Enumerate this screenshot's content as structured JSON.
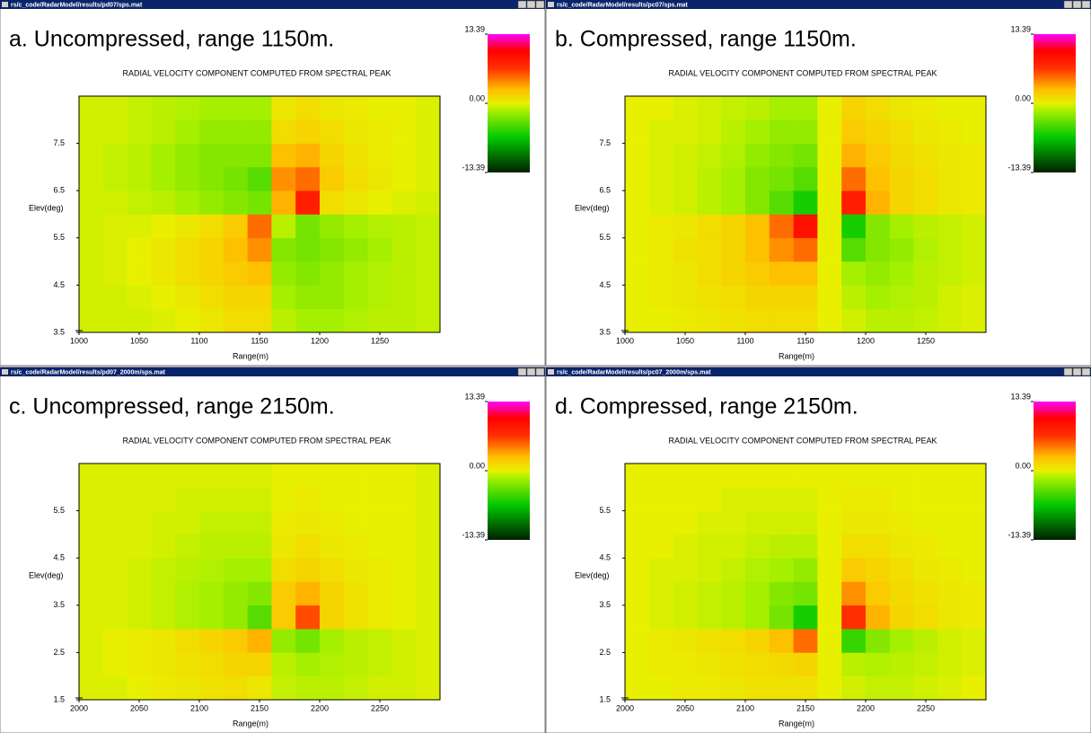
{
  "window_titles": [
    "rs/c_code/RadarModel/results/pd07/sps.mat",
    "rs/c_code/RadarModel/results/pc07/sps.mat",
    "rs/c_code/RadarModel/results/pd07_2000m/sps.mat",
    "rs/c_code/RadarModel/results/pc07_2000m/sps.mat"
  ],
  "chart_data": [
    {
      "type": "heatmap",
      "title": "a. Uncompressed, range 1150m.",
      "subtitle": "RADIAL VELOCITY COMPONENT COMPUTED FROM SPECTRAL PEAK",
      "x_label": "Range(m)",
      "y_label": "Elev(deg)",
      "xlim": [
        1000,
        1300
      ],
      "xticks": [
        1000,
        1050,
        1100,
        1150,
        1200,
        1250
      ],
      "ylim": [
        3.5,
        8.5
      ],
      "yticks": [
        3.5,
        4.5,
        5.5,
        6.5,
        7.5
      ],
      "zlim": [
        -13.39,
        13.39
      ],
      "zticks": [
        13.39,
        {
          "value": 0,
          "label": "0.00"
        },
        -13.39
      ],
      "x_bins": [
        1000,
        1020,
        1040,
        1060,
        1080,
        1100,
        1120,
        1140,
        1160,
        1180,
        1200,
        1220,
        1240,
        1260,
        1280,
        1300
      ],
      "y_bins": [
        3.5,
        4,
        4.5,
        5,
        5.5,
        6,
        6.5,
        7,
        7.5,
        8,
        8.5
      ],
      "z": [
        [
          -0.5,
          -0.5,
          -0.5,
          -0.3,
          0,
          0.5,
          1,
          1,
          -1,
          -1.5,
          -1.5,
          -1.2,
          -1,
          -1,
          -0.8
        ],
        [
          -0.5,
          -0.5,
          -0.3,
          0,
          0.5,
          1,
          1.5,
          1.5,
          -1.5,
          -2,
          -2,
          -1.5,
          -1.2,
          -1,
          -0.8
        ],
        [
          -0.5,
          -0.3,
          0,
          0.5,
          1,
          1.5,
          2,
          2.5,
          -2,
          -2.5,
          -2,
          -1.5,
          -1.2,
          -1,
          -0.8
        ],
        [
          -0.5,
          -0.3,
          0,
          0.5,
          1,
          1.5,
          2.5,
          4,
          -2.5,
          -3,
          -2.5,
          -2,
          -1.5,
          -1,
          -0.8
        ],
        [
          -0.5,
          -0.3,
          -0.3,
          0,
          0.5,
          1,
          2,
          5,
          -1,
          -3,
          -2,
          -1.5,
          -1.2,
          -1,
          -0.8
        ],
        [
          -0.5,
          -0.5,
          -0.8,
          -1,
          -1.5,
          -2,
          -2.5,
          -3,
          3,
          8,
          1,
          0.5,
          0,
          -0.3,
          -0.5
        ],
        [
          -0.5,
          -0.8,
          -1,
          -1.5,
          -2,
          -2.5,
          -3,
          -4,
          4,
          5,
          2,
          1,
          0.5,
          0,
          -0.3
        ],
        [
          -0.5,
          -0.8,
          -1,
          -1.5,
          -2,
          -2.5,
          -2.5,
          -2.5,
          2.5,
          3,
          1.5,
          0.8,
          0.3,
          0,
          -0.3
        ],
        [
          -0.5,
          -0.5,
          -0.8,
          -1,
          -1.5,
          -2,
          -2,
          -2,
          1,
          1.5,
          1,
          0.5,
          0.3,
          0,
          -0.3
        ],
        [
          -0.5,
          -0.5,
          -0.8,
          -1,
          -1.2,
          -1.5,
          -1.5,
          -1.5,
          0.5,
          1,
          0.5,
          0.3,
          0,
          0,
          -0.3
        ]
      ]
    },
    {
      "type": "heatmap",
      "title": "b. Compressed, range 1150m.",
      "subtitle": "RADIAL VELOCITY COMPONENT COMPUTED FROM SPECTRAL PEAK",
      "x_label": "Range(m)",
      "y_label": "Elev(deg)",
      "xlim": [
        1000,
        1300
      ],
      "xticks": [
        1000,
        1050,
        1100,
        1150,
        1200,
        1250
      ],
      "ylim": [
        3.5,
        8.5
      ],
      "yticks": [
        3.5,
        4.5,
        5.5,
        6.5,
        7.5
      ],
      "zlim": [
        -13.39,
        13.39
      ],
      "zticks": [
        13.39,
        {
          "value": 0,
          "label": "0.00"
        },
        -13.39
      ],
      "x_bins": [
        1000,
        1020,
        1040,
        1060,
        1080,
        1100,
        1120,
        1140,
        1160,
        1180,
        1200,
        1220,
        1240,
        1260,
        1280,
        1300
      ],
      "y_bins": [
        3.5,
        4,
        4.5,
        5,
        5.5,
        6,
        6.5,
        7,
        7.5,
        8,
        8.5
      ],
      "z": [
        [
          0,
          0,
          0.3,
          0.5,
          0.8,
          1,
          1,
          1,
          0,
          -0.5,
          -1,
          -1,
          -0.8,
          -0.5,
          -0.3
        ],
        [
          0,
          0.3,
          0.5,
          0.8,
          1,
          1.5,
          1.5,
          1.5,
          0,
          -1,
          -1.5,
          -1.2,
          -1,
          -0.5,
          -0.3
        ],
        [
          0,
          0.3,
          0.5,
          1,
          1.5,
          2,
          2.5,
          2.5,
          0,
          -1.5,
          -2,
          -1.5,
          -1,
          -0.8,
          -0.5
        ],
        [
          0,
          0.3,
          0.8,
          1,
          1.5,
          2.5,
          4,
          5,
          0,
          -4,
          -2.5,
          -2,
          -1.2,
          -0.8,
          -0.5
        ],
        [
          0,
          0.3,
          0.5,
          1,
          1.5,
          2.5,
          5,
          9,
          0,
          -6,
          -2.5,
          -1.5,
          -1,
          -0.8,
          -0.5
        ],
        [
          0,
          -0.3,
          -0.5,
          -1,
          -1.5,
          -2.5,
          -4,
          -6,
          0,
          8,
          3,
          1.5,
          1,
          0.5,
          0.3
        ],
        [
          0,
          -0.3,
          -0.5,
          -1,
          -1.5,
          -2.5,
          -3,
          -4,
          0,
          5,
          2.5,
          1.5,
          1,
          0.5,
          0.3
        ],
        [
          0,
          -0.3,
          -0.5,
          -0.8,
          -1.2,
          -2,
          -2.5,
          -3,
          0,
          3,
          2,
          1.2,
          0.8,
          0.5,
          0.3
        ],
        [
          0,
          -0.3,
          -0.3,
          -0.5,
          -1,
          -1.5,
          -2,
          -2,
          0,
          2,
          1.5,
          1,
          0.5,
          0.3,
          0
        ],
        [
          0,
          0,
          -0.3,
          -0.5,
          -0.8,
          -1,
          -1.5,
          -1.5,
          0,
          1.5,
          1,
          0.5,
          0.3,
          0,
          0
        ]
      ]
    },
    {
      "type": "heatmap",
      "title": "c. Uncompressed, range 2150m.",
      "subtitle": "RADIAL VELOCITY COMPONENT COMPUTED FROM SPECTRAL PEAK",
      "x_label": "Range(m)",
      "y_label": "Elev(deg)",
      "xlim": [
        2000,
        2300
      ],
      "xticks": [
        2000,
        2050,
        2100,
        2150,
        2200,
        2250
      ],
      "ylim": [
        1.5,
        6.5
      ],
      "yticks": [
        1.5,
        2.5,
        3.5,
        4.5,
        5.5
      ],
      "zlim": [
        -13.39,
        13.39
      ],
      "zticks": [
        13.39,
        {
          "value": 0,
          "label": "0.00"
        },
        -13.39
      ],
      "x_bins": [
        2000,
        2020,
        2040,
        2060,
        2080,
        2100,
        2120,
        2140,
        2160,
        2180,
        2200,
        2220,
        2240,
        2260,
        2280,
        2300
      ],
      "y_bins": [
        1.5,
        2,
        2.5,
        3,
        3.5,
        4,
        4.5,
        5,
        5.5,
        6,
        6.5
      ],
      "z": [
        [
          -0.3,
          -0.3,
          0,
          0.3,
          0.5,
          0.8,
          1,
          0.5,
          -0.8,
          -1,
          -1,
          -0.8,
          -0.5,
          -0.5,
          -0.3
        ],
        [
          -0.3,
          0,
          0.3,
          0.5,
          0.8,
          1,
          1.5,
          1.5,
          -1,
          -1.5,
          -1.2,
          -1,
          -0.8,
          -0.5,
          -0.3
        ],
        [
          -0.3,
          0,
          0.3,
          0.5,
          1,
          1.5,
          2,
          3,
          -2,
          -3,
          -1.5,
          -1,
          -0.8,
          -0.5,
          -0.3
        ],
        [
          -0.3,
          -0.3,
          -0.5,
          -0.8,
          -1.2,
          -1.5,
          -2,
          -4,
          2,
          6,
          1.5,
          0.8,
          0.3,
          0,
          -0.3
        ],
        [
          -0.3,
          -0.3,
          -0.5,
          -0.8,
          -1.2,
          -1.5,
          -2,
          -2.5,
          2,
          3,
          1.5,
          0.8,
          0.3,
          0,
          -0.3
        ],
        [
          -0.3,
          -0.3,
          -0.5,
          -0.8,
          -1,
          -1.2,
          -1.5,
          -1.5,
          1,
          1.5,
          1,
          0.5,
          0.3,
          0,
          -0.3
        ],
        [
          -0.3,
          -0.3,
          -0.3,
          -0.5,
          -0.8,
          -1,
          -1,
          -1,
          0.5,
          1,
          0.5,
          0.3,
          0,
          0,
          -0.3
        ],
        [
          -0.3,
          -0.3,
          -0.3,
          -0.5,
          -0.5,
          -0.8,
          -0.8,
          -0.8,
          0.3,
          0.5,
          0.3,
          0,
          0,
          0,
          -0.3
        ],
        [
          -0.3,
          -0.3,
          -0.3,
          -0.3,
          -0.5,
          -0.5,
          -0.5,
          -0.5,
          0,
          0.3,
          0,
          0,
          0,
          0,
          -0.3
        ],
        [
          -0.3,
          -0.3,
          -0.3,
          -0.3,
          -0.3,
          -0.3,
          -0.3,
          -0.3,
          0,
          0,
          0,
          0,
          0,
          0,
          -0.3
        ]
      ]
    },
    {
      "type": "heatmap",
      "title": "d. Compressed, range 2150m.",
      "subtitle": "RADIAL VELOCITY COMPONENT COMPUTED FROM SPECTRAL PEAK",
      "x_label": "Range(m)",
      "y_label": "Elev(deg)",
      "xlim": [
        2000,
        2300
      ],
      "xticks": [
        2000,
        2050,
        2100,
        2150,
        2200,
        2250
      ],
      "ylim": [
        1.5,
        6.5
      ],
      "yticks": [
        1.5,
        2.5,
        3.5,
        4.5,
        5.5
      ],
      "zlim": [
        -13.39,
        13.39
      ],
      "zticks": [
        13.39,
        {
          "value": 0,
          "label": "0.00"
        },
        -13.39
      ],
      "x_bins": [
        2000,
        2020,
        2040,
        2060,
        2080,
        2100,
        2120,
        2140,
        2160,
        2180,
        2200,
        2220,
        2240,
        2260,
        2280,
        2300
      ],
      "y_bins": [
        1.5,
        2,
        2.5,
        3,
        3.5,
        4,
        4.5,
        5,
        5.5,
        6,
        6.5
      ],
      "z": [
        [
          0,
          0,
          0.3,
          0.3,
          0.5,
          0.8,
          0.8,
          0.8,
          0,
          -0.5,
          -0.8,
          -0.8,
          -0.5,
          -0.3,
          0
        ],
        [
          0,
          0.3,
          0.3,
          0.5,
          0.8,
          1,
          1.2,
          1.5,
          0,
          -1,
          -1.2,
          -1,
          -0.8,
          -0.5,
          -0.3
        ],
        [
          0,
          0.3,
          0.5,
          0.8,
          1,
          1.5,
          2.5,
          5,
          0,
          -5,
          -2.5,
          -1.5,
          -1,
          -0.5,
          -0.3
        ],
        [
          0,
          -0.3,
          -0.5,
          -0.8,
          -1,
          -1.5,
          -3,
          -6,
          0,
          7,
          3,
          1.5,
          1,
          0.5,
          0.3
        ],
        [
          0,
          -0.3,
          -0.5,
          -0.8,
          -1,
          -1.5,
          -2.5,
          -3,
          0,
          4,
          2,
          1.2,
          0.8,
          0.5,
          0.3
        ],
        [
          0,
          -0.3,
          -0.3,
          -0.5,
          -0.8,
          -1.2,
          -1.5,
          -2,
          0,
          2,
          1.5,
          1,
          0.5,
          0.3,
          0
        ],
        [
          0,
          0,
          -0.3,
          -0.5,
          -0.5,
          -0.8,
          -1,
          -1,
          0,
          1,
          1,
          0.5,
          0.3,
          0,
          0
        ],
        [
          0,
          0,
          0,
          -0.3,
          -0.3,
          -0.5,
          -0.5,
          -0.5,
          0,
          0.5,
          0.5,
          0.3,
          0,
          0,
          0
        ],
        [
          0,
          0,
          0,
          0,
          -0.3,
          -0.3,
          -0.3,
          -0.3,
          0,
          0.3,
          0.3,
          0,
          0,
          0,
          0
        ],
        [
          0,
          0,
          0,
          0,
          0,
          0,
          0,
          0,
          0,
          0,
          0,
          0,
          0,
          0,
          0
        ]
      ]
    }
  ]
}
